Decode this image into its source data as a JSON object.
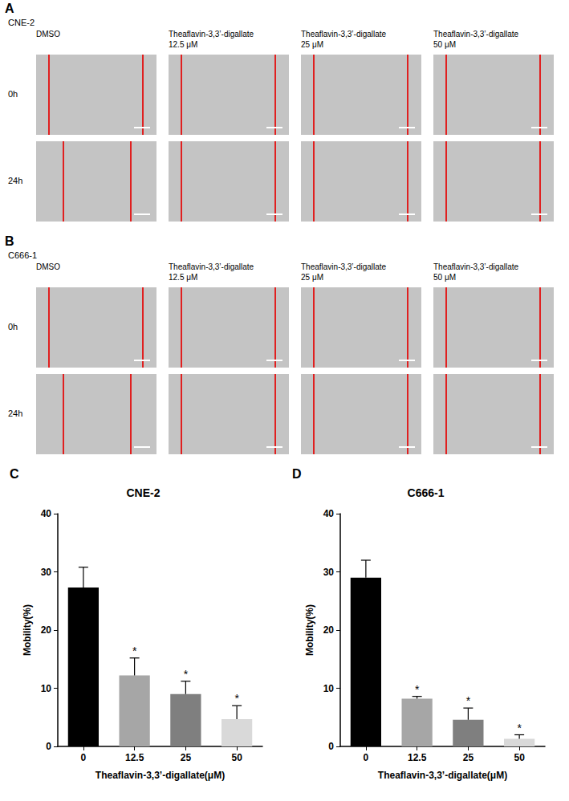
{
  "panels": [
    {
      "letter": "A",
      "cell_line": "CNE-2",
      "columns": [
        [
          "DMSO"
        ],
        [
          "Theaflavin-3,3’-digallate",
          "12.5 μM"
        ],
        [
          "Theaflavin-3,3’-digallate",
          "25 μM"
        ],
        [
          "Theaflavin-3,3’-digallate",
          "50 μM"
        ]
      ],
      "rows": [
        "0h",
        "24h"
      ]
    },
    {
      "letter": "B",
      "cell_line": "C666-1",
      "columns": [
        [
          "DMSO"
        ],
        [
          "Theaflavin-3,3’-digallate",
          "12.5 μM"
        ],
        [
          "Theaflavin-3,3’-digallate",
          "25 μM"
        ],
        [
          "Theaflavin-3,3’-digallate",
          "50 μM"
        ]
      ],
      "rows": [
        "0h",
        "24h"
      ]
    }
  ],
  "chart_data": [
    {
      "letter": "C",
      "type": "bar",
      "title": "CNE-2",
      "categories": [
        "0",
        "12.5",
        "25",
        "50"
      ],
      "values": [
        27.3,
        12.2,
        9.0,
        4.7
      ],
      "errors": [
        3.5,
        3.0,
        2.2,
        2.3
      ],
      "significance": [
        null,
        "*",
        "*",
        "*"
      ],
      "colors": [
        "#000000",
        "#a6a6a6",
        "#7f7f7f",
        "#d9d9d9"
      ],
      "x_label": "Theaflavin-3,3’-digallate(μM)",
      "y_label": "Mobility(%)",
      "ylim": [
        0,
        40
      ],
      "yticks": [
        0,
        10,
        20,
        30,
        40
      ],
      "grid": false
    },
    {
      "letter": "D",
      "type": "bar",
      "title": "C666-1",
      "categories": [
        "0",
        "12.5",
        "25",
        "50"
      ],
      "values": [
        29.0,
        8.2,
        4.6,
        1.3
      ],
      "errors": [
        3.0,
        0.4,
        2.0,
        0.7
      ],
      "significance": [
        null,
        "*",
        "*",
        "*"
      ],
      "colors": [
        "#000000",
        "#a6a6a6",
        "#7f7f7f",
        "#d9d9d9"
      ],
      "x_label": "Theaflavin-3,3’-digallate(μM)",
      "y_label": "Mobility(%)",
      "ylim": [
        0,
        40
      ],
      "yticks": [
        0,
        10,
        20,
        30,
        40
      ],
      "grid": false
    }
  ]
}
